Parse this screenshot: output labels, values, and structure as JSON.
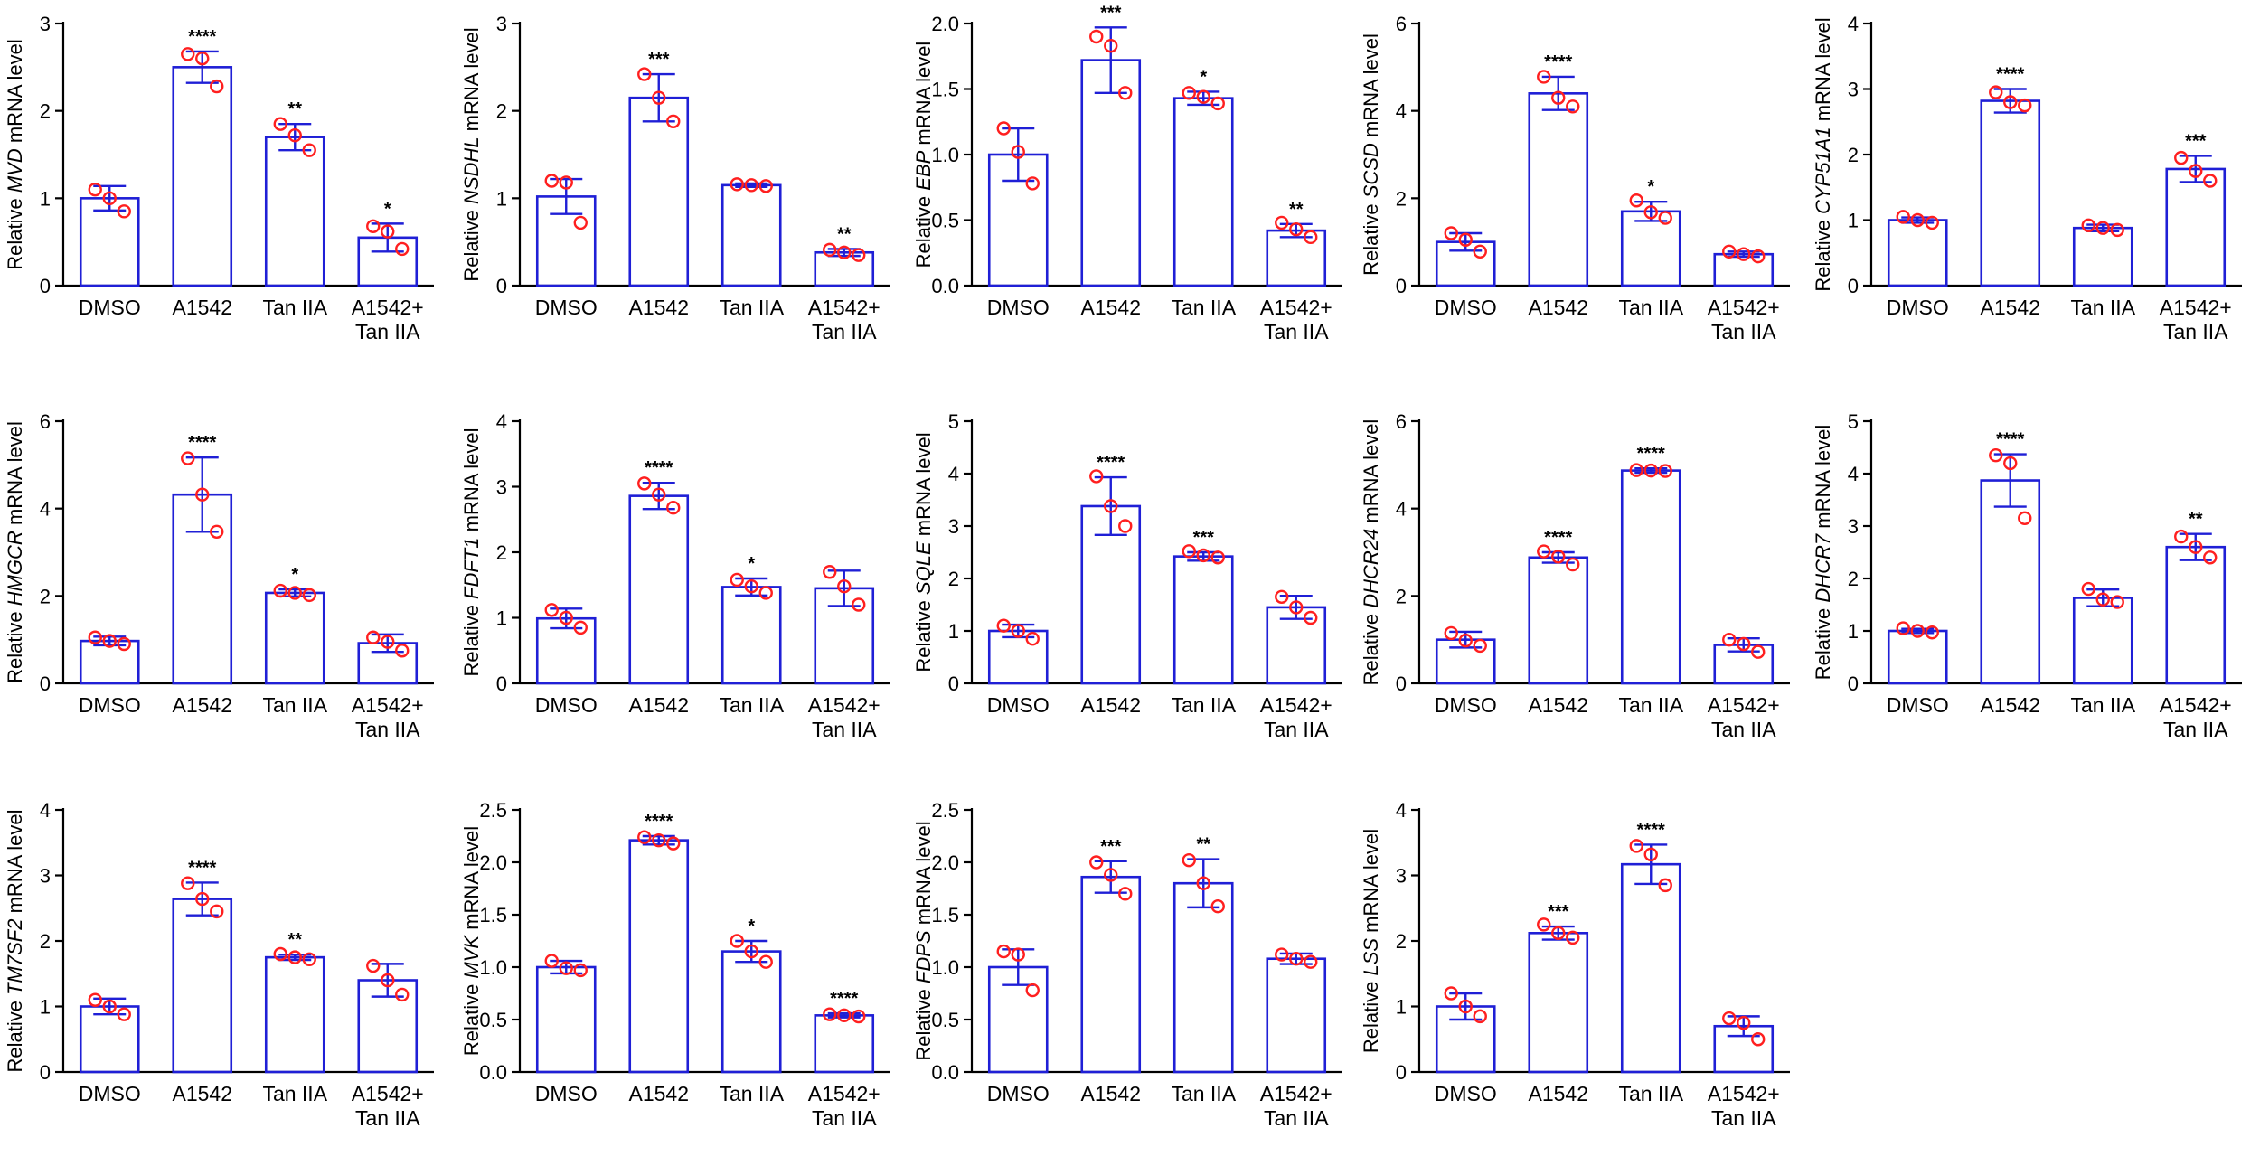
{
  "style": {
    "bar_color": "#1f1fd6",
    "point_color": "#ff1f1f",
    "axis_color": "#000000"
  },
  "chart_data": [
    {
      "type": "bar",
      "gene": "MVD",
      "ylabel_prefix": "Relative",
      "ylabel_suffix": "mRNA level",
      "categories": [
        [
          "DMSO"
        ],
        [
          "A1542"
        ],
        [
          "Tan IIA"
        ],
        [
          "A1542+",
          "Tan IIA"
        ]
      ],
      "values": [
        1.0,
        2.5,
        1.7,
        0.55
      ],
      "errors": [
        0.14,
        0.18,
        0.15,
        0.16
      ],
      "points": [
        [
          1.1,
          1.0,
          0.85
        ],
        [
          2.65,
          2.6,
          2.28
        ],
        [
          1.85,
          1.72,
          1.55
        ],
        [
          0.68,
          0.62,
          0.42
        ]
      ],
      "significance": [
        "",
        "****",
        "**",
        "*"
      ],
      "ylim": [
        0,
        3
      ],
      "yticks": [
        "0",
        "1",
        "2",
        "3"
      ]
    },
    {
      "type": "bar",
      "gene": "NSDHL",
      "ylabel_prefix": "Relative",
      "ylabel_suffix": "mRNA level",
      "categories": [
        [
          "DMSO"
        ],
        [
          "A1542"
        ],
        [
          "Tan IIA"
        ],
        [
          "A1542+",
          "Tan IIA"
        ]
      ],
      "values": [
        1.02,
        2.15,
        1.15,
        0.38
      ],
      "errors": [
        0.2,
        0.27,
        0.02,
        0.04
      ],
      "points": [
        [
          1.2,
          1.18,
          0.72
        ],
        [
          2.42,
          2.15,
          1.88
        ],
        [
          1.16,
          1.15,
          1.14
        ],
        [
          0.41,
          0.38,
          0.35
        ]
      ],
      "significance": [
        "",
        "***",
        "",
        "**"
      ],
      "ylim": [
        0,
        3
      ],
      "yticks": [
        "0",
        "1",
        "2",
        "3"
      ]
    },
    {
      "type": "bar",
      "gene": "EBP",
      "ylabel_prefix": "Relative",
      "ylabel_suffix": "mRNA level",
      "categories": [
        [
          "DMSO"
        ],
        [
          "A1542"
        ],
        [
          "Tan IIA"
        ],
        [
          "A1542+",
          "Tan IIA"
        ]
      ],
      "values": [
        1.0,
        1.72,
        1.43,
        0.42
      ],
      "errors": [
        0.2,
        0.25,
        0.05,
        0.05
      ],
      "points": [
        [
          1.2,
          1.02,
          0.78
        ],
        [
          1.9,
          1.83,
          1.47
        ],
        [
          1.47,
          1.44,
          1.39
        ],
        [
          0.48,
          0.43,
          0.37
        ]
      ],
      "significance": [
        "",
        "***",
        "*",
        "**"
      ],
      "ylim": [
        0,
        2.0
      ],
      "yticks": [
        "0.0",
        "0.5",
        "1.0",
        "1.5",
        "2.0"
      ]
    },
    {
      "type": "bar",
      "gene": "SCSD",
      "ylabel_prefix": "Relative",
      "ylabel_suffix": "mRNA level",
      "categories": [
        [
          "DMSO"
        ],
        [
          "A1542"
        ],
        [
          "Tan IIA"
        ],
        [
          "A1542+",
          "Tan IIA"
        ]
      ],
      "values": [
        1.0,
        4.4,
        1.7,
        0.72
      ],
      "errors": [
        0.2,
        0.38,
        0.22,
        0.06
      ],
      "points": [
        [
          1.2,
          1.05,
          0.78
        ],
        [
          4.78,
          4.3,
          4.1
        ],
        [
          1.95,
          1.68,
          1.55
        ],
        [
          0.78,
          0.72,
          0.67
        ]
      ],
      "significance": [
        "",
        "****",
        "*",
        ""
      ],
      "ylim": [
        0,
        6
      ],
      "yticks": [
        "0",
        "2",
        "4",
        "6"
      ]
    },
    {
      "type": "bar",
      "gene": "CYP51A1",
      "ylabel_prefix": "Relative",
      "ylabel_suffix": "mRNA level",
      "categories": [
        [
          "DMSO"
        ],
        [
          "A1542"
        ],
        [
          "Tan IIA"
        ],
        [
          "A1542+",
          "Tan IIA"
        ]
      ],
      "values": [
        1.0,
        2.82,
        0.88,
        1.78
      ],
      "errors": [
        0.04,
        0.18,
        0.05,
        0.2
      ],
      "points": [
        [
          1.05,
          1.0,
          0.96
        ],
        [
          2.95,
          2.8,
          2.75
        ],
        [
          0.92,
          0.88,
          0.85
        ],
        [
          1.95,
          1.75,
          1.6
        ]
      ],
      "significance": [
        "",
        "****",
        "",
        "***"
      ],
      "ylim": [
        0,
        4
      ],
      "yticks": [
        "0",
        "1",
        "2",
        "3",
        "4"
      ]
    },
    {
      "type": "bar",
      "gene": "HMGCR",
      "ylabel_prefix": "Relative",
      "ylabel_suffix": "mRNA level",
      "categories": [
        [
          "DMSO"
        ],
        [
          "A1542"
        ],
        [
          "Tan IIA"
        ],
        [
          "A1542+",
          "Tan IIA"
        ]
      ],
      "values": [
        0.97,
        4.32,
        2.07,
        0.92
      ],
      "errors": [
        0.1,
        0.85,
        0.08,
        0.2
      ],
      "points": [
        [
          1.05,
          0.97,
          0.9
        ],
        [
          5.15,
          4.32,
          3.47
        ],
        [
          2.12,
          2.07,
          2.02
        ],
        [
          1.05,
          0.95,
          0.75
        ]
      ],
      "significance": [
        "",
        "****",
        "*",
        ""
      ],
      "ylim": [
        0,
        6
      ],
      "yticks": [
        "0",
        "2",
        "4",
        "6"
      ]
    },
    {
      "type": "bar",
      "gene": "FDFT1",
      "ylabel_prefix": "Relative",
      "ylabel_suffix": "mRNA level",
      "categories": [
        [
          "DMSO"
        ],
        [
          "A1542"
        ],
        [
          "Tan IIA"
        ],
        [
          "A1542+",
          "Tan IIA"
        ]
      ],
      "values": [
        0.99,
        2.86,
        1.47,
        1.45
      ],
      "errors": [
        0.15,
        0.2,
        0.13,
        0.27
      ],
      "points": [
        [
          1.12,
          1.0,
          0.85
        ],
        [
          3.05,
          2.88,
          2.68
        ],
        [
          1.58,
          1.48,
          1.38
        ],
        [
          1.7,
          1.48,
          1.2
        ]
      ],
      "significance": [
        "",
        "****",
        "*",
        ""
      ],
      "ylim": [
        0,
        4
      ],
      "yticks": [
        "0",
        "1",
        "2",
        "3",
        "4"
      ]
    },
    {
      "type": "bar",
      "gene": "SQLE",
      "ylabel_prefix": "Relative",
      "ylabel_suffix": "mRNA level",
      "categories": [
        [
          "DMSO"
        ],
        [
          "A1542"
        ],
        [
          "Tan IIA"
        ],
        [
          "A1542+",
          "Tan IIA"
        ]
      ],
      "values": [
        1.0,
        3.38,
        2.42,
        1.45
      ],
      "errors": [
        0.12,
        0.55,
        0.08,
        0.22
      ],
      "points": [
        [
          1.1,
          1.0,
          0.85
        ],
        [
          3.95,
          3.38,
          3.0
        ],
        [
          2.52,
          2.44,
          2.4
        ],
        [
          1.65,
          1.45,
          1.25
        ]
      ],
      "significance": [
        "",
        "****",
        "***",
        ""
      ],
      "ylim": [
        0,
        5
      ],
      "yticks": [
        "0",
        "1",
        "2",
        "3",
        "4",
        "5"
      ]
    },
    {
      "type": "bar",
      "gene": "DHCR24",
      "ylabel_prefix": "Relative",
      "ylabel_suffix": "mRNA level",
      "categories": [
        [
          "DMSO"
        ],
        [
          "A1542"
        ],
        [
          "Tan IIA"
        ],
        [
          "A1542+",
          "Tan IIA"
        ]
      ],
      "values": [
        1.0,
        2.88,
        4.87,
        0.88
      ],
      "errors": [
        0.18,
        0.12,
        0.05,
        0.15
      ],
      "points": [
        [
          1.15,
          0.98,
          0.86
        ],
        [
          3.02,
          2.9,
          2.72
        ],
        [
          4.88,
          4.87,
          4.86
        ],
        [
          1.0,
          0.9,
          0.72
        ]
      ],
      "significance": [
        "",
        "****",
        "****",
        ""
      ],
      "ylim": [
        0,
        6
      ],
      "yticks": [
        "0",
        "2",
        "4",
        "6"
      ]
    },
    {
      "type": "bar",
      "gene": "DHCR7",
      "ylabel_prefix": "Relative",
      "ylabel_suffix": "mRNA level",
      "categories": [
        [
          "DMSO"
        ],
        [
          "A1542"
        ],
        [
          "Tan IIA"
        ],
        [
          "A1542+",
          "Tan IIA"
        ]
      ],
      "values": [
        1.0,
        3.87,
        1.63,
        2.6
      ],
      "errors": [
        0.04,
        0.5,
        0.16,
        0.25
      ],
      "points": [
        [
          1.05,
          1.0,
          0.97
        ],
        [
          4.35,
          4.2,
          3.15
        ],
        [
          1.8,
          1.6,
          1.55
        ],
        [
          2.8,
          2.6,
          2.4
        ]
      ],
      "significance": [
        "",
        "****",
        "",
        "**"
      ],
      "ylim": [
        0,
        5
      ],
      "yticks": [
        "0",
        "1",
        "2",
        "3",
        "4",
        "5"
      ]
    },
    {
      "type": "bar",
      "gene": "TM7SF2",
      "ylabel_prefix": "Relative",
      "ylabel_suffix": "mRNA level",
      "categories": [
        [
          "DMSO"
        ],
        [
          "A1542"
        ],
        [
          "Tan IIA"
        ],
        [
          "A1542+",
          "Tan IIA"
        ]
      ],
      "values": [
        1.0,
        2.64,
        1.75,
        1.4
      ],
      "errors": [
        0.12,
        0.25,
        0.04,
        0.25
      ],
      "points": [
        [
          1.1,
          1.0,
          0.88
        ],
        [
          2.88,
          2.64,
          2.45
        ],
        [
          1.8,
          1.75,
          1.72
        ],
        [
          1.62,
          1.4,
          1.18
        ]
      ],
      "significance": [
        "",
        "****",
        "**",
        ""
      ],
      "ylim": [
        0,
        4
      ],
      "yticks": [
        "0",
        "1",
        "2",
        "3",
        "4"
      ]
    },
    {
      "type": "bar",
      "gene": "MVK",
      "ylabel_prefix": "Relative",
      "ylabel_suffix": "mRNA level",
      "categories": [
        [
          "DMSO"
        ],
        [
          "A1542"
        ],
        [
          "Tan IIA"
        ],
        [
          "A1542+",
          "Tan IIA"
        ]
      ],
      "values": [
        1.0,
        2.21,
        1.15,
        0.54
      ],
      "errors": [
        0.06,
        0.04,
        0.1,
        0.02
      ],
      "points": [
        [
          1.06,
          0.99,
          0.97
        ],
        [
          2.24,
          2.21,
          2.18
        ],
        [
          1.25,
          1.15,
          1.05
        ],
        [
          0.55,
          0.54,
          0.53
        ]
      ],
      "significance": [
        "",
        "****",
        "*",
        "****"
      ],
      "ylim": [
        0,
        2.5
      ],
      "yticks": [
        "0.0",
        "0.5",
        "1.0",
        "1.5",
        "2.0",
        "2.5"
      ]
    },
    {
      "type": "bar",
      "gene": "FDPS",
      "ylabel_prefix": "Relative",
      "ylabel_suffix": "mRNA level",
      "categories": [
        [
          "DMSO"
        ],
        [
          "A1542"
        ],
        [
          "Tan IIA"
        ],
        [
          "A1542+",
          "Tan IIA"
        ]
      ],
      "values": [
        1.0,
        1.86,
        1.8,
        1.08
      ],
      "errors": [
        0.17,
        0.15,
        0.23,
        0.05
      ],
      "points": [
        [
          1.15,
          1.12,
          0.78
        ],
        [
          2.0,
          1.88,
          1.7
        ],
        [
          2.02,
          1.8,
          1.58
        ],
        [
          1.12,
          1.08,
          1.05
        ]
      ],
      "significance": [
        "",
        "***",
        "**",
        ""
      ],
      "ylim": [
        0,
        2.5
      ],
      "yticks": [
        "0.0",
        "0.5",
        "1.0",
        "1.5",
        "2.0",
        "2.5"
      ]
    },
    {
      "type": "bar",
      "gene": "LSS",
      "ylabel_prefix": "Relative",
      "ylabel_suffix": "mRNA level",
      "categories": [
        [
          "DMSO"
        ],
        [
          "A1542"
        ],
        [
          "Tan IIA"
        ],
        [
          "A1542+",
          "Tan IIA"
        ]
      ],
      "values": [
        1.0,
        2.12,
        3.17,
        0.7
      ],
      "errors": [
        0.2,
        0.1,
        0.3,
        0.15
      ],
      "points": [
        [
          1.2,
          1.0,
          0.85
        ],
        [
          2.25,
          2.12,
          2.05
        ],
        [
          3.45,
          3.32,
          2.85
        ],
        [
          0.82,
          0.75,
          0.5
        ]
      ],
      "significance": [
        "",
        "***",
        "****",
        ""
      ],
      "ylim": [
        0,
        4
      ],
      "yticks": [
        "0",
        "1",
        "2",
        "3",
        "4"
      ]
    }
  ]
}
